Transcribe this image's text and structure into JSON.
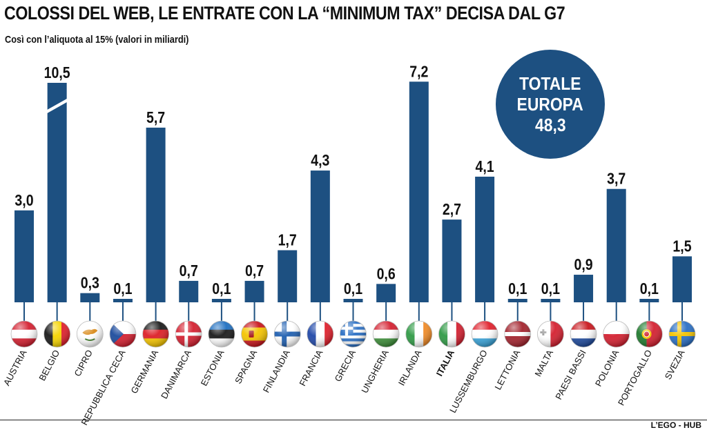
{
  "title": "COLOSSI DEL WEB, LE ENTRATE CON LA “MINIMUM TAX” DECISA DAL G7",
  "subtitle": "Così con l’aliquota al 15% (valori in miliardi)",
  "total": {
    "line1": "TOTALE",
    "line2": "EUROPA",
    "value": "48,3"
  },
  "credit": "L’EGO - HUB",
  "colors": {
    "bar": "#1d5081",
    "text": "#111111"
  },
  "chart_data": {
    "type": "bar",
    "categories": [
      "AUSTRIA",
      "BELGIO",
      "CIPRO",
      "REPUBBLICA CECA",
      "GERMANIA",
      "DANIMARCA",
      "ESTONIA",
      "SPAGNA",
      "FINLANDIA",
      "FRANCIA",
      "GRECIA",
      "UNGHERIA",
      "IRLANDA",
      "ITALIA",
      "LUSSEMBURGO",
      "LETTONIA",
      "MALTA",
      "PAESI BASSI",
      "POLONIA",
      "PORTOGALLO",
      "SVEZIA"
    ],
    "values": [
      3.0,
      10.5,
      0.3,
      0.1,
      5.7,
      0.7,
      0.1,
      0.7,
      1.7,
      4.3,
      0.1,
      0.6,
      7.2,
      2.7,
      4.1,
      0.1,
      0.1,
      0.9,
      3.7,
      0.1,
      1.5
    ],
    "value_labels": [
      "3,0",
      "10,5",
      "0,3",
      "0,1",
      "5,7",
      "0,7",
      "0,1",
      "0,7",
      "1,7",
      "4,3",
      "0,1",
      "0,6",
      "7,2",
      "2,7",
      "4,1",
      "0,1",
      "0,1",
      "0,9",
      "3,7",
      "0,1",
      "1,5"
    ],
    "highlighted_category": "ITALIA",
    "broken_axis_bar": "BELGIO",
    "flags": [
      "flag-austria",
      "flag-belgium",
      "flag-cyprus",
      "flag-czech-republic",
      "flag-germany",
      "flag-denmark",
      "flag-estonia",
      "flag-spain",
      "flag-finland",
      "flag-france",
      "flag-greece",
      "flag-hungary",
      "flag-ireland",
      "flag-italy",
      "flag-luxembourg",
      "flag-latvia",
      "flag-malta",
      "flag-netherlands",
      "flag-poland",
      "flag-portugal",
      "flag-sweden"
    ],
    "ylim": [
      0,
      7.4
    ],
    "grid": false,
    "xlabel": "",
    "ylabel": ""
  }
}
